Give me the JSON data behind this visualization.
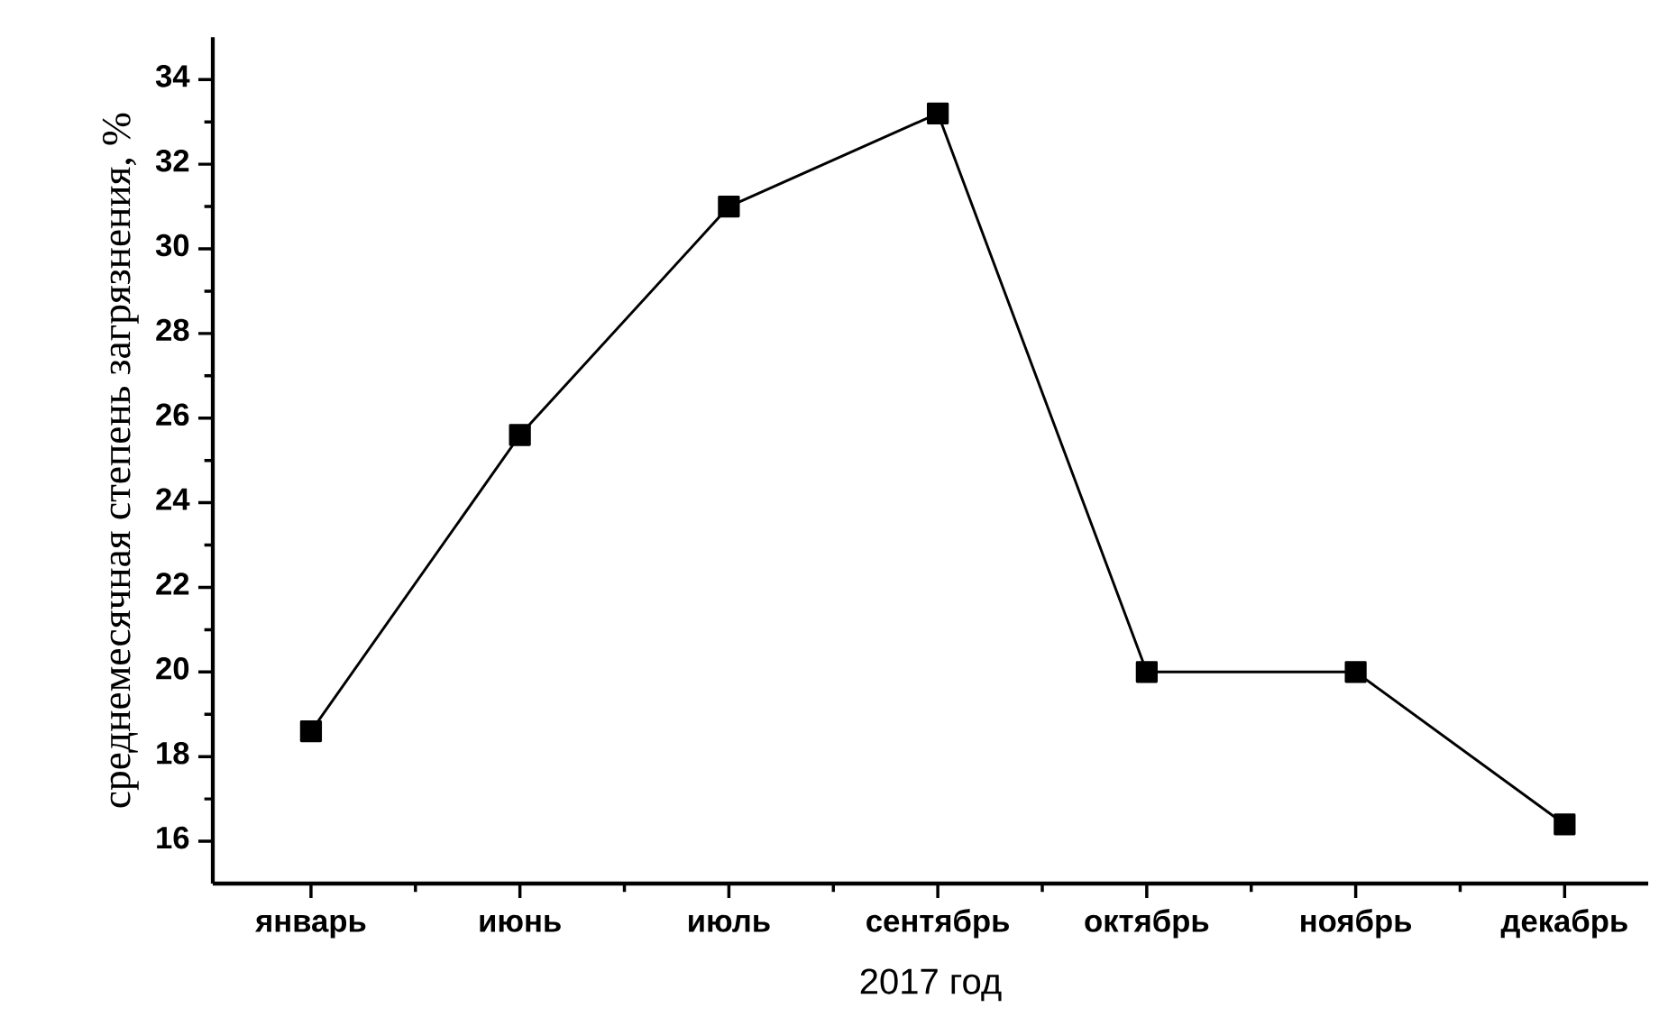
{
  "chart_data": {
    "type": "line",
    "xlabel": "2017 год",
    "ylabel": "среднемесячная степень загрязнения, %",
    "categories": [
      "январь",
      "июнь",
      "июль",
      "сентябрь",
      "октябрь",
      "ноябрь",
      "декабрь"
    ],
    "values": [
      18.6,
      25.6,
      31.0,
      33.2,
      20.0,
      20.0,
      16.4
    ],
    "color": "#000000",
    "ylim": [
      15,
      35
    ],
    "yticks": [
      16,
      18,
      20,
      22,
      24,
      26,
      28,
      30,
      32,
      34
    ],
    "grid": false,
    "marker": "square",
    "line_style": "solid"
  }
}
